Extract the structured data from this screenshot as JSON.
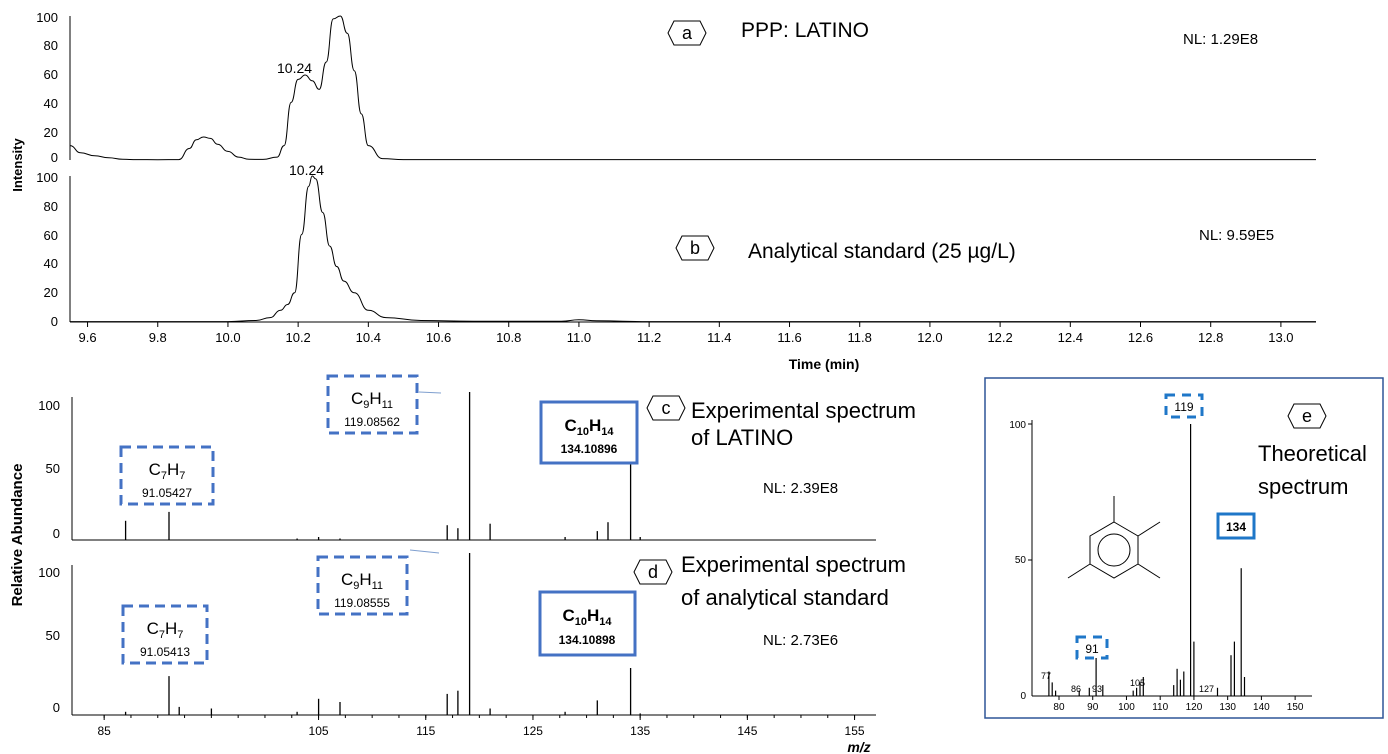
{
  "colors": {
    "trace": "#000000",
    "blue": "#4472c4",
    "box_border": "#2e5597",
    "axis": "#000000"
  },
  "chromatograms": {
    "ylabel": "Intensity",
    "xlabel": "Time (min)",
    "x_ticks": [
      "9.6",
      "9.8",
      "10.0",
      "10.2",
      "10.4",
      "10.6",
      "10.8",
      "11.0",
      "11.2",
      "11.4",
      "11.6",
      "11.8",
      "12.0",
      "12.2",
      "12.4",
      "12.6",
      "12.8",
      "13.0"
    ],
    "panel_a": {
      "letter": "a",
      "title": "PPP: LATINO",
      "nl": "NL: 1.29E8",
      "peak_label": "10.24",
      "y_ticks": [
        "100",
        "80",
        "60",
        "40",
        "20",
        "0"
      ]
    },
    "panel_b": {
      "letter": "b",
      "title": "Analytical standard (25 µg/L)",
      "nl": "NL: 9.59E5",
      "peak_label": "10.24",
      "y_ticks": [
        "100",
        "80",
        "60",
        "40",
        "20",
        "0"
      ]
    }
  },
  "spectra": {
    "ylabel": "Relative Abundance",
    "xlabel": "m/z",
    "x_ticks": [
      "85",
      "105",
      "115",
      "125",
      "135",
      "145",
      "155"
    ],
    "panel_c": {
      "letter": "c",
      "title_line1": "Experimental spectrum",
      "title_line2": "of LATINO",
      "nl": "NL: 2.39E8",
      "y_ticks": [
        "100",
        "50",
        "0"
      ],
      "box_c7": {
        "formula_main": "C",
        "sub1": "7",
        "formula_h": "H",
        "sub2": "7",
        "mass": "91.05427"
      },
      "box_c9": {
        "formula_main": "C",
        "sub1": "9",
        "formula_h": "H",
        "sub2": "11",
        "mass": "119.08562"
      },
      "box_c10": {
        "formula_main": "C",
        "sub1": "10",
        "formula_h": "H",
        "sub2": "14",
        "mass": "134.10896"
      }
    },
    "panel_d": {
      "letter": "d",
      "title_line1": "Experimental spectrum",
      "title_line2": "of analytical standard",
      "nl": "NL: 2.73E6",
      "y_ticks": [
        "100",
        "50",
        "0"
      ],
      "box_c7": {
        "formula_main": "C",
        "sub1": "7",
        "formula_h": "H",
        "sub2": "7",
        "mass": "91.05413"
      },
      "box_c9": {
        "formula_main": "C",
        "sub1": "9",
        "formula_h": "H",
        "sub2": "11",
        "mass": "119.08555"
      },
      "box_c10": {
        "formula_main": "C",
        "sub1": "10",
        "formula_h": "H",
        "sub2": "14",
        "mass": "134.10898"
      }
    }
  },
  "theoretical": {
    "letter": "e",
    "title_line1": "Theoretical",
    "title_line2": "spectrum",
    "y_ticks": [
      "100",
      "50",
      "0"
    ],
    "x_ticks": [
      "80",
      "90",
      "100",
      "110",
      "120",
      "130",
      "140",
      "150"
    ],
    "peak_labels": {
      "p77": "77",
      "p86": "86",
      "p93": "93",
      "p105": "105",
      "p127": "127"
    },
    "box_labels": {
      "b91": "91",
      "b119": "119",
      "b134": "134"
    }
  },
  "chart_data": [
    {
      "type": "line",
      "panel": "a",
      "xlabel": "Time (min)",
      "ylabel": "Intensity",
      "xlim": [
        9.55,
        13.1
      ],
      "ylim": [
        0,
        100
      ],
      "x": [
        9.55,
        9.58,
        9.62,
        9.66,
        9.7,
        9.74,
        9.8,
        9.86,
        9.89,
        9.91,
        9.93,
        9.95,
        9.97,
        10.0,
        10.03,
        10.06,
        10.1,
        10.14,
        10.16,
        10.18,
        10.2,
        10.22,
        10.24,
        10.26,
        10.28,
        10.3,
        10.32,
        10.34,
        10.36,
        10.38,
        10.4,
        10.44,
        10.5,
        13.1
      ],
      "y": [
        10,
        5,
        3,
        1.5,
        0.5,
        0.3,
        0.2,
        0.3,
        8,
        14,
        16,
        15,
        11,
        6,
        2,
        0.5,
        0.4,
        2,
        10,
        40,
        56,
        59,
        55,
        49,
        68,
        98,
        100,
        88,
        62,
        32,
        10,
        1,
        0.3,
        0.3
      ],
      "annotations": [
        {
          "x": 10.24,
          "label": "10.24"
        }
      ]
    },
    {
      "type": "line",
      "panel": "b",
      "xlabel": "Time (min)",
      "ylabel": "Intensity",
      "xlim": [
        9.55,
        13.1
      ],
      "ylim": [
        0,
        100
      ],
      "x": [
        9.55,
        10.0,
        10.08,
        10.12,
        10.15,
        10.17,
        10.19,
        10.21,
        10.23,
        10.24,
        10.25,
        10.27,
        10.29,
        10.31,
        10.33,
        10.36,
        10.4,
        10.45,
        10.55,
        10.7,
        10.95,
        11.0,
        11.05,
        11.2,
        13.1
      ],
      "y": [
        0.3,
        0.3,
        1,
        3,
        8,
        12,
        20,
        60,
        93,
        100,
        98,
        75,
        52,
        38,
        28,
        20,
        8,
        3,
        1,
        0.5,
        0.5,
        1.5,
        0.8,
        0.3,
        0.3
      ],
      "annotations": [
        {
          "x": 10.24,
          "label": "10.24"
        }
      ]
    },
    {
      "type": "bar",
      "panel": "c",
      "xlabel": "m/z",
      "ylabel": "Relative Abundance",
      "xlim": [
        82,
        157
      ],
      "ylim": [
        0,
        100
      ],
      "x": [
        87,
        91.05,
        103,
        105,
        107,
        117,
        118,
        119.09,
        121,
        128,
        131,
        132,
        134.11,
        135
      ],
      "y": [
        13,
        19,
        1,
        2,
        1,
        10,
        8,
        100,
        11,
        2,
        6,
        12,
        52,
        2
      ]
    },
    {
      "type": "bar",
      "panel": "d",
      "xlabel": "m/z",
      "ylabel": "Relative Abundance",
      "xlim": [
        82,
        157
      ],
      "ylim": [
        0,
        100
      ],
      "x": [
        87,
        91.05,
        92,
        95,
        103,
        105,
        107,
        117,
        118,
        119.09,
        121,
        128,
        131,
        134.11,
        135
      ],
      "y": [
        2,
        24,
        5,
        4,
        2,
        10,
        8,
        13,
        15,
        100,
        4,
        2,
        9,
        29,
        1
      ]
    },
    {
      "type": "bar",
      "panel": "e",
      "xlim": [
        72,
        155
      ],
      "ylim": [
        0,
        100
      ],
      "x": [
        77,
        78,
        79,
        86,
        89,
        91,
        93,
        102,
        103,
        104,
        105,
        114,
        115,
        116,
        117,
        119,
        120,
        127,
        131,
        132,
        134,
        135
      ],
      "y": [
        9,
        5,
        2,
        2,
        3,
        22,
        4,
        2,
        3,
        5,
        7,
        4,
        10,
        6,
        9,
        100,
        20,
        3,
        15,
        20,
        47,
        7
      ]
    }
  ]
}
